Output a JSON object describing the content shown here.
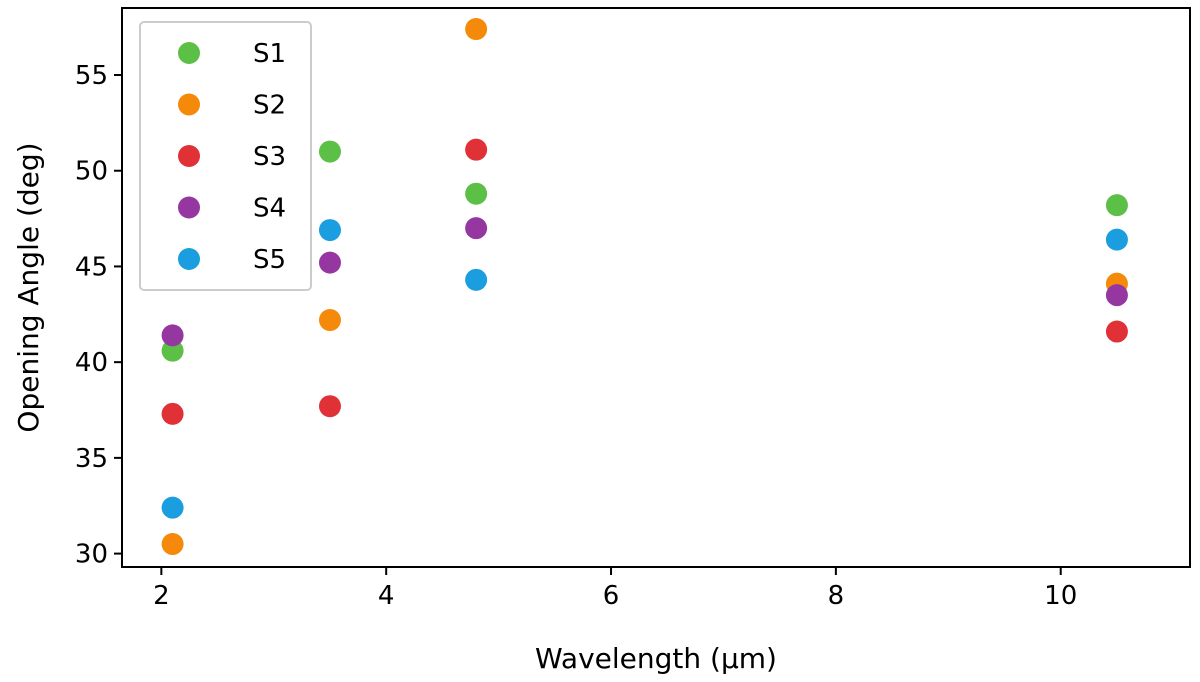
{
  "chart_data": {
    "type": "scatter",
    "title": "",
    "xlabel": "Wavelength (μm)",
    "ylabel": "Opening Angle (deg)",
    "xlim": [
      1.65,
      11.15
    ],
    "ylim": [
      29.3,
      58.5
    ],
    "xticks": [
      2,
      4,
      6,
      8,
      10
    ],
    "yticks": [
      30,
      35,
      40,
      45,
      50,
      55
    ],
    "grid": false,
    "legend_position": "top-left",
    "x": [
      2.1,
      3.5,
      4.8,
      10.5
    ],
    "series": [
      {
        "name": "S1",
        "color": "#5cbf46",
        "values": [
          40.6,
          51.0,
          48.8,
          48.2
        ]
      },
      {
        "name": "S2",
        "color": "#f58a0a",
        "values": [
          30.5,
          42.2,
          57.4,
          44.1
        ]
      },
      {
        "name": "S3",
        "color": "#e03236",
        "values": [
          37.3,
          37.7,
          51.1,
          41.6
        ]
      },
      {
        "name": "S4",
        "color": "#9637a1",
        "values": [
          41.4,
          45.2,
          47.0,
          43.5
        ]
      },
      {
        "name": "S5",
        "color": "#1a9ee0",
        "values": [
          32.4,
          46.9,
          44.3,
          46.4
        ]
      }
    ]
  }
}
